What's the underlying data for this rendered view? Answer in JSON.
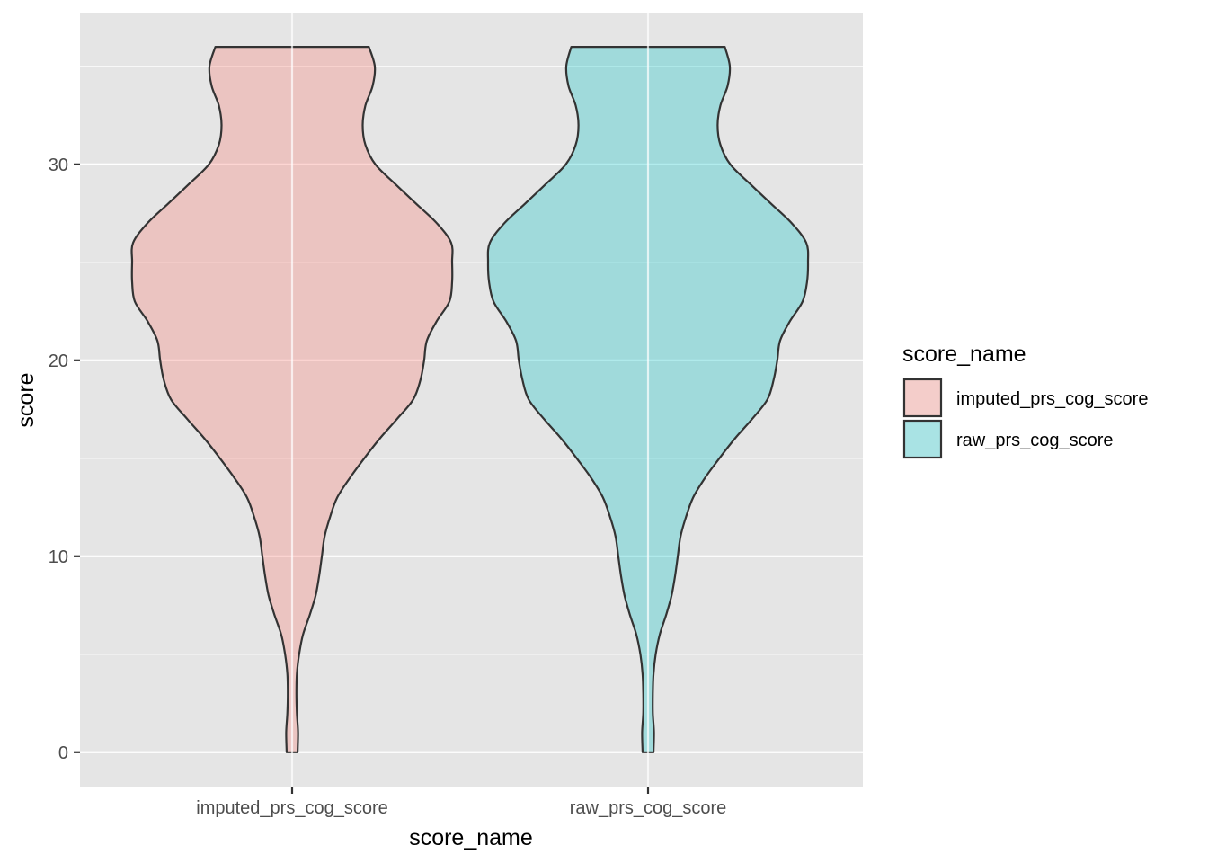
{
  "chart_data": {
    "type": "violin",
    "xlabel": "score_name",
    "ylabel": "score",
    "categories": [
      "imputed_prs_cog_score",
      "raw_prs_cog_score"
    ],
    "ylim": [
      -1.8,
      37.7
    ],
    "yticks": [
      0,
      10,
      20,
      30
    ],
    "grid": true,
    "legend": {
      "title": "score_name",
      "position": "right",
      "entries": [
        "imputed_prs_cog_score",
        "raw_prs_cog_score"
      ]
    },
    "series": [
      {
        "category": "imputed_prs_cog_score",
        "color": "#F8766D",
        "y_range": [
          0,
          36
        ],
        "density_profile": [
          [
            0,
            0.034
          ],
          [
            1,
            0.037
          ],
          [
            2,
            0.03
          ],
          [
            3,
            0.027
          ],
          [
            4,
            0.03
          ],
          [
            5,
            0.044
          ],
          [
            6,
            0.068
          ],
          [
            7,
            0.11
          ],
          [
            8,
            0.147
          ],
          [
            9,
            0.169
          ],
          [
            10,
            0.186
          ],
          [
            11,
            0.203
          ],
          [
            12,
            0.237
          ],
          [
            13,
            0.282
          ],
          [
            14,
            0.361
          ],
          [
            15,
            0.451
          ],
          [
            16,
            0.547
          ],
          [
            17,
            0.655
          ],
          [
            18,
            0.757
          ],
          [
            19,
            0.802
          ],
          [
            20,
            0.825
          ],
          [
            21,
            0.842
          ],
          [
            22,
            0.904
          ],
          [
            23,
            0.983
          ],
          [
            24,
            1.0
          ],
          [
            25,
            1.0
          ],
          [
            26,
            0.994
          ],
          [
            27,
            0.904
          ],
          [
            28,
            0.774
          ],
          [
            29,
            0.644
          ],
          [
            30,
            0.52
          ],
          [
            31,
            0.458
          ],
          [
            32,
            0.441
          ],
          [
            33,
            0.458
          ],
          [
            34,
            0.503
          ],
          [
            35,
            0.517
          ],
          [
            36,
            0.48
          ]
        ]
      },
      {
        "category": "raw_prs_cog_score",
        "color": "#00BFC4",
        "y_range": [
          0,
          36
        ],
        "density_profile": [
          [
            0,
            0.034
          ],
          [
            1,
            0.037
          ],
          [
            2,
            0.03
          ],
          [
            3,
            0.03
          ],
          [
            4,
            0.034
          ],
          [
            5,
            0.048
          ],
          [
            6,
            0.073
          ],
          [
            7,
            0.113
          ],
          [
            8,
            0.147
          ],
          [
            9,
            0.169
          ],
          [
            10,
            0.186
          ],
          [
            11,
            0.203
          ],
          [
            12,
            0.237
          ],
          [
            13,
            0.282
          ],
          [
            14,
            0.356
          ],
          [
            15,
            0.446
          ],
          [
            16,
            0.542
          ],
          [
            17,
            0.65
          ],
          [
            18,
            0.746
          ],
          [
            19,
            0.785
          ],
          [
            20,
            0.808
          ],
          [
            21,
            0.825
          ],
          [
            22,
            0.887
          ],
          [
            23,
            0.966
          ],
          [
            24,
            0.994
          ],
          [
            25,
            1.0
          ],
          [
            26,
            0.989
          ],
          [
            27,
            0.898
          ],
          [
            28,
            0.768
          ],
          [
            29,
            0.638
          ],
          [
            30,
            0.514
          ],
          [
            31,
            0.452
          ],
          [
            32,
            0.435
          ],
          [
            33,
            0.452
          ],
          [
            34,
            0.497
          ],
          [
            35,
            0.511
          ],
          [
            36,
            0.48
          ]
        ]
      }
    ]
  }
}
